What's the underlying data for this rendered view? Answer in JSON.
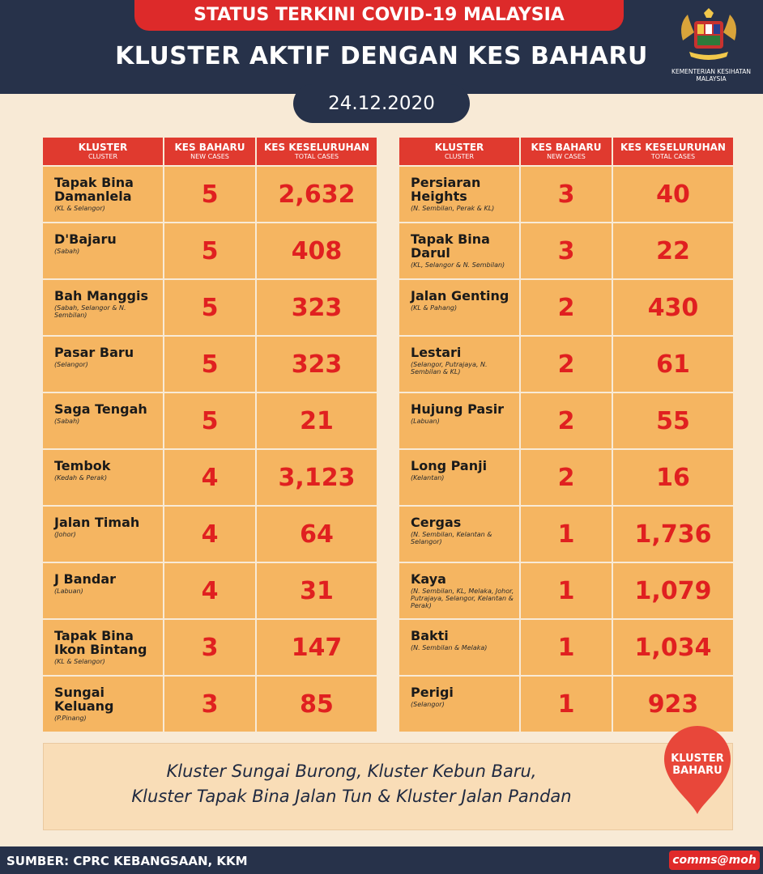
{
  "header": {
    "banner": "STATUS TERKINI COVID-19 MALAYSIA",
    "title": "KLUSTER AKTIF DENGAN KES BAHARU",
    "date": "24.12.2020",
    "ministry": "KEMENTERIAN KESIHATAN MALAYSIA",
    "crest_icon": "malaysia-coat-of-arms-icon"
  },
  "columns": {
    "cluster": "KLUSTER",
    "cluster_sub": "CLUSTER",
    "new": "KES BAHARU",
    "new_sub": "NEW CASES",
    "total": "KES KESELURUHAN",
    "total_sub": "TOTAL CASES"
  },
  "left_rows": [
    {
      "name": "Tapak Bina Damanlela",
      "region": "(KL & Selangor)",
      "new": "5",
      "total": "2,632"
    },
    {
      "name": "D'Bajaru",
      "region": "(Sabah)",
      "new": "5",
      "total": "408"
    },
    {
      "name": "Bah Manggis",
      "region": "(Sabah, Selangor & N. Sembilan)",
      "new": "5",
      "total": "323"
    },
    {
      "name": "Pasar Baru",
      "region": "(Selangor)",
      "new": "5",
      "total": "323"
    },
    {
      "name": "Saga Tengah",
      "region": "(Sabah)",
      "new": "5",
      "total": "21"
    },
    {
      "name": "Tembok",
      "region": "(Kedah & Perak)",
      "new": "4",
      "total": "3,123"
    },
    {
      "name": "Jalan Timah",
      "region": "(Johor)",
      "new": "4",
      "total": "64"
    },
    {
      "name": "J Bandar",
      "region": "(Labuan)",
      "new": "4",
      "total": "31"
    },
    {
      "name": "Tapak Bina Ikon Bintang",
      "region": "(KL & Selangor)",
      "new": "3",
      "total": "147"
    },
    {
      "name": "Sungai Keluang",
      "region": "(P.Pinang)",
      "new": "3",
      "total": "85"
    }
  ],
  "right_rows": [
    {
      "name": "Persiaran Heights",
      "region": "(N. Sembilan, Perak & KL)",
      "new": "3",
      "total": "40"
    },
    {
      "name": "Tapak Bina Darul",
      "region": "(KL, Selangor & N. Sembilan)",
      "new": "3",
      "total": "22"
    },
    {
      "name": "Jalan Genting",
      "region": "(KL & Pahang)",
      "new": "2",
      "total": "430"
    },
    {
      "name": "Lestari",
      "region": "(Selangor, Putrajaya, N. Sembilan & KL)",
      "new": "2",
      "total": "61"
    },
    {
      "name": "Hujung Pasir",
      "region": "(Labuan)",
      "new": "2",
      "total": "55"
    },
    {
      "name": "Long Panji",
      "region": "(Kelantan)",
      "new": "2",
      "total": "16"
    },
    {
      "name": "Cergas",
      "region": "(N. Sembilan, Kelantan & Selangor)",
      "new": "1",
      "total": "1,736"
    },
    {
      "name": "Kaya",
      "region": "(N. Sembilan, KL, Melaka, Johor, Putrajaya, Selangor, Kelantan & Perak)",
      "new": "1",
      "total": "1,079"
    },
    {
      "name": "Bakti",
      "region": "(N. Sembilan & Melaka)",
      "new": "1",
      "total": "1,034"
    },
    {
      "name": "Perigi",
      "region": "(Selangor)",
      "new": "1",
      "total": "923"
    }
  ],
  "note": {
    "line1": "Kluster Sungai Burong, Kluster Kebun Baru,",
    "line2": "Kluster Tapak Bina Jalan Tun & Kluster Jalan Pandan",
    "badge_line1": "KLUSTER",
    "badge_line2": "BAHARU",
    "badge_icon": "map-pin-icon"
  },
  "footer": {
    "source": "SUMBER: CPRC KEBANGSAAN, KKM",
    "handle": "comms@moh"
  },
  "colors": {
    "navy": "#27324a",
    "red": "#dd2a2a",
    "cell": "#f5b561",
    "background": "#f8ead6"
  }
}
